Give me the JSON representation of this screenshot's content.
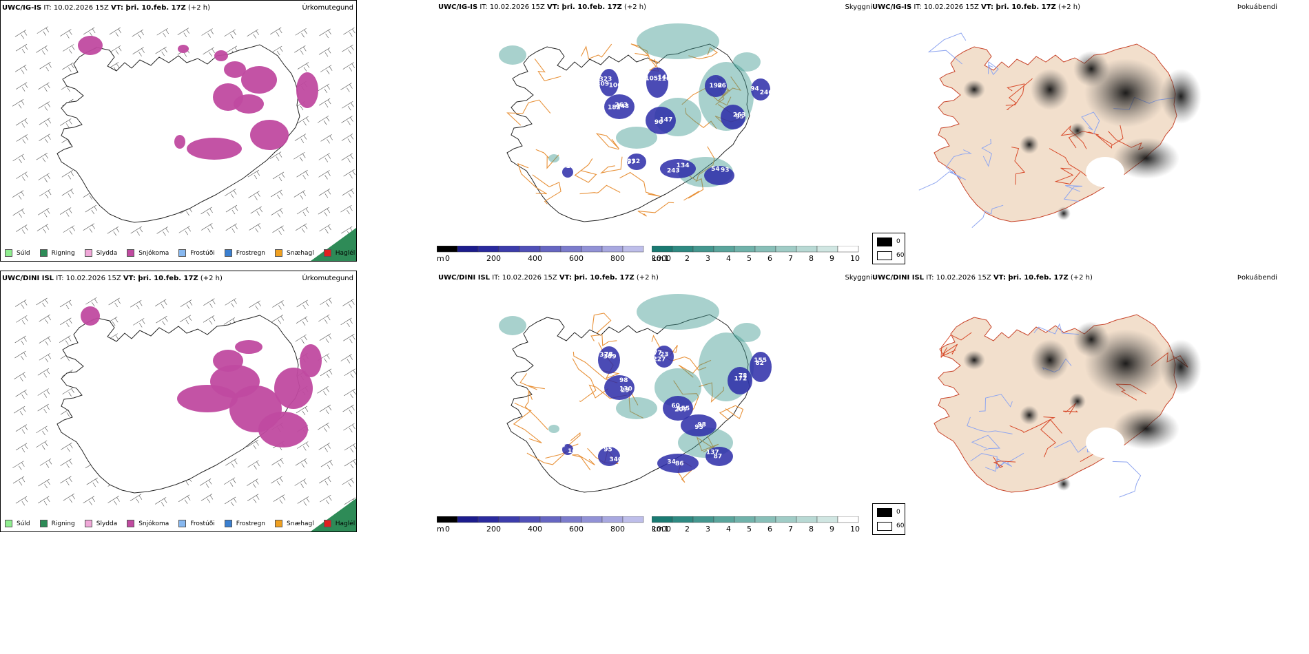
{
  "rows": [
    {
      "model": "UWC/IG-IS",
      "it_label": "IT:",
      "it_value": "10.02.2026 15Z",
      "vt_label": "VT:",
      "vt_value": "þri. 10.feb. 17Z",
      "lead": "(+2 h)"
    },
    {
      "model": "UWC/DINI ISL",
      "it_label": "IT:",
      "it_value": "10.02.2026 15Z",
      "vt_label": "VT:",
      "vt_value": "þri. 10.feb. 17Z",
      "lead": "(+2 h)"
    }
  ],
  "panels": {
    "precip_type_title": "Úrkomutegund",
    "ceiling_title": "Skyggni",
    "fog_title": "Þokuábendi"
  },
  "precip_legend": [
    {
      "label": "Súld",
      "color": "#90ee90"
    },
    {
      "label": "Rigning",
      "color": "#2e8b57"
    },
    {
      "label": "Slydda",
      "color": "#f0a8d8"
    },
    {
      "label": "Snjókoma",
      "color": "#c04aa0"
    },
    {
      "label": "Frostúði",
      "color": "#87b8f0"
    },
    {
      "label": "Frostregn",
      "color": "#3a7fd0"
    },
    {
      "label": "Snæhagl",
      "color": "#f0a020"
    },
    {
      "label": "Haglél",
      "color": "#e02020"
    }
  ],
  "ceiling_bar": {
    "unit": "m",
    "ticks": [
      "0",
      "200",
      "400",
      "600",
      "800",
      "1000"
    ],
    "colors": [
      "#000000",
      "#1c1c8c",
      "#2a2a9e",
      "#3c3cab",
      "#5050b8",
      "#6666c2",
      "#7c7ccc",
      "#9292d6",
      "#a8a8e0",
      "#bebeea"
    ]
  },
  "vis_bar": {
    "unit": "km",
    "ticks": [
      "1",
      "2",
      "3",
      "4",
      "5",
      "6",
      "7",
      "8",
      "9",
      "10"
    ],
    "colors": [
      "#1a7a72",
      "#2e8a82",
      "#44978f",
      "#5aa59c",
      "#70b2aa",
      "#88bfb8",
      "#a0ccc6",
      "#b8d9d4",
      "#d0e6e2",
      "#ffffff"
    ]
  },
  "fog_legend": {
    "high": "0",
    "low": "60"
  },
  "ceiling_labels_top": [
    "323",
    "182",
    "105",
    "90",
    "86",
    "263",
    "246",
    "232",
    "243",
    "54",
    "236",
    "309",
    "263",
    "116",
    "147",
    "192",
    "95",
    "94",
    "97",
    "134",
    "93",
    "197",
    "106",
    "143",
    "148"
  ],
  "ceiling_labels_bottom": [
    "326",
    "29",
    "77",
    "155",
    "98",
    "172",
    "155",
    "340",
    "86",
    "87",
    "04",
    "309",
    "130",
    "227",
    "207",
    "95",
    "78",
    "82",
    "95",
    "34",
    "137",
    "167",
    "78",
    "98",
    "23",
    "60"
  ]
}
